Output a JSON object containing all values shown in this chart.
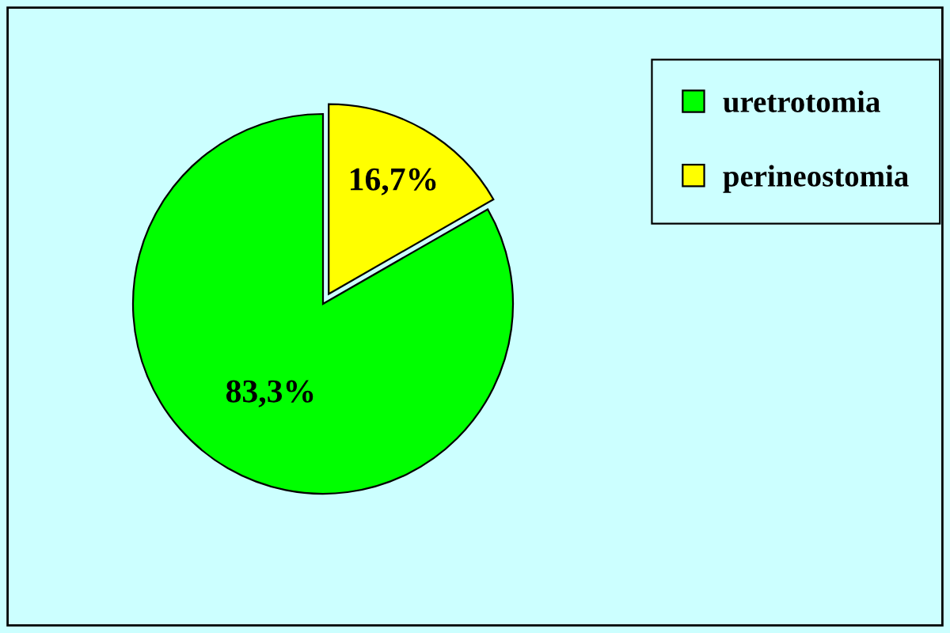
{
  "chart_data": {
    "type": "pie",
    "categories": [
      "uretrotomia",
      "perineostomia"
    ],
    "values": [
      83.3,
      16.7
    ],
    "colors": [
      "#00ff00",
      "#ffff00"
    ],
    "value_labels": [
      "83,3%",
      "16,7%"
    ],
    "legend": "top right"
  }
}
